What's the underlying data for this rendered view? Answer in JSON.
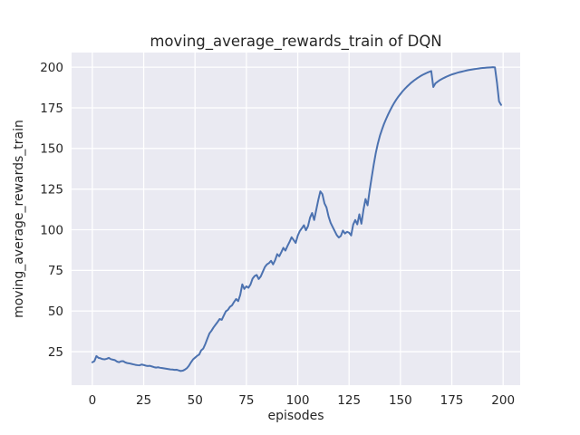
{
  "colors": {
    "line": "#4C72B0",
    "axes_background": "#EAEAF2",
    "grid": "#FFFFFF",
    "text": "#262626",
    "figure_background": "#FFFFFF"
  },
  "chart_data": {
    "type": "line",
    "title": "moving_average_rewards_train of DQN",
    "xlabel": "episodes",
    "ylabel": "moving_average_rewards_train",
    "legend": null,
    "grid": true,
    "x_ticks": [
      0,
      25,
      50,
      75,
      100,
      125,
      150,
      175,
      200
    ],
    "y_ticks": [
      25,
      50,
      75,
      100,
      125,
      150,
      175,
      200
    ],
    "xlim": [
      -10.1,
      208.3
    ],
    "ylim": [
      4.4,
      209.0
    ],
    "x_start": 0,
    "x_step": 1,
    "series": [
      {
        "name": "moving_average_rewards_train",
        "values": [
          18.5,
          19.2,
          22.3,
          21.2,
          20.9,
          20.4,
          20.3,
          20.6,
          21.2,
          20.4,
          20.1,
          19.8,
          18.9,
          18.5,
          19.1,
          19.2,
          18.4,
          18.0,
          17.8,
          17.5,
          17.2,
          16.9,
          16.7,
          16.6,
          17.1,
          16.8,
          16.4,
          16.2,
          16.3,
          15.9,
          15.5,
          15.2,
          15.4,
          15.1,
          14.9,
          14.7,
          14.5,
          14.3,
          14.1,
          14.0,
          13.8,
          13.9,
          13.5,
          13.1,
          13.3,
          13.9,
          14.8,
          16.3,
          18.4,
          20.2,
          21.3,
          22.4,
          23.2,
          25.8,
          26.9,
          29.7,
          33.0,
          36.2,
          37.9,
          39.9,
          41.6,
          43.3,
          45.1,
          44.6,
          47.2,
          49.8,
          50.7,
          52.6,
          53.5,
          55.6,
          57.4,
          56.1,
          59.9,
          66.4,
          63.6,
          65.2,
          64.3,
          66.3,
          69.9,
          71.5,
          72.2,
          69.7,
          71.3,
          74.2,
          77.1,
          78.7,
          79.5,
          80.9,
          78.7,
          81.3,
          85.0,
          83.7,
          86.2,
          88.9,
          87.2,
          90.0,
          92.5,
          95.4,
          93.7,
          91.9,
          96.3,
          99.2,
          100.9,
          102.8,
          99.7,
          102.2,
          107.5,
          110.3,
          106.0,
          112.2,
          118.3,
          123.6,
          121.9,
          116.3,
          113.7,
          108.2,
          104.3,
          101.7,
          99.2,
          96.7,
          95.2,
          96.2,
          99.5,
          97.7,
          98.7,
          98.2,
          96.5,
          103.2,
          106.0,
          103.3,
          109.5,
          103.7,
          112.3,
          118.9,
          115.0,
          124.1,
          132.2,
          140.1,
          147.2,
          153.0,
          157.8,
          161.6,
          165.1,
          168.1,
          170.9,
          173.5,
          175.9,
          178.1,
          180.1,
          181.9,
          183.5,
          185.1,
          186.5,
          187.8,
          189.0,
          190.2,
          191.2,
          192.2,
          193.1,
          193.9,
          194.7,
          195.4,
          196.0,
          196.6,
          197.1,
          197.6,
          187.8,
          190.0,
          191.0,
          191.9,
          192.6,
          193.3,
          193.9,
          194.5,
          195.0,
          195.5,
          195.9,
          196.3,
          196.7,
          197.0,
          197.3,
          197.6,
          197.9,
          198.2,
          198.4,
          198.6,
          198.8,
          199.0,
          199.2,
          199.4,
          199.5,
          199.6,
          199.7,
          199.8,
          199.9,
          200.0,
          199.9,
          190.5,
          179.0,
          176.8
        ]
      }
    ]
  }
}
